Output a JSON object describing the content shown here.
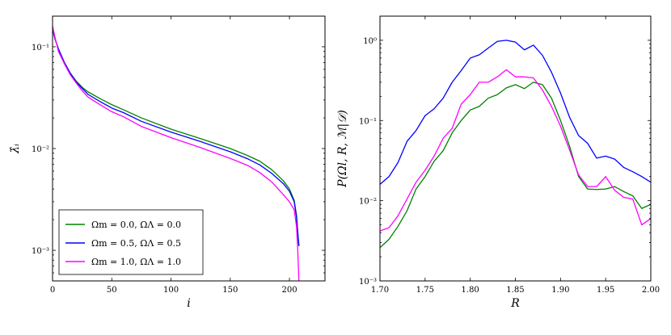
{
  "chart_data": [
    {
      "type": "line",
      "yscale": "log",
      "xlabel": "i",
      "ylabel": "λ̂ᵢ",
      "xlim": [
        0,
        230
      ],
      "ylim": [
        0.0005,
        0.2
      ],
      "xticks": [
        0,
        50,
        100,
        150,
        200
      ],
      "xtick_labels": [
        "0",
        "50",
        "100",
        "150",
        "200"
      ],
      "yticks": [
        0.001,
        0.01,
        0.1
      ],
      "ytick_labels": [
        "10⁻³",
        "10⁻²",
        "10⁻¹"
      ],
      "legend_position": "lower-left",
      "series": [
        {
          "name": "Ωm = 0.0,  ΩΛ = 0.0",
          "color": "#008000",
          "x": [
            0,
            2,
            5,
            10,
            15,
            20,
            25,
            30,
            40,
            50,
            60,
            75,
            100,
            125,
            150,
            165,
            175,
            185,
            195,
            200,
            204,
            206,
            207,
            208
          ],
          "y": [
            0.15,
            0.12,
            0.095,
            0.07,
            0.055,
            0.046,
            0.04,
            0.036,
            0.031,
            0.027,
            0.024,
            0.02,
            0.0155,
            0.0125,
            0.01,
            0.0085,
            0.0075,
            0.0062,
            0.0048,
            0.004,
            0.0031,
            0.0022,
            0.0015,
            0.0011
          ]
        },
        {
          "name": "Ωm = 0.5,  ΩΛ = 0.5",
          "color": "#0000ff",
          "x": [
            0,
            2,
            5,
            10,
            15,
            20,
            25,
            30,
            40,
            50,
            60,
            75,
            100,
            125,
            150,
            165,
            175,
            185,
            195,
            200,
            204,
            206,
            207,
            208
          ],
          "y": [
            0.15,
            0.12,
            0.095,
            0.07,
            0.055,
            0.045,
            0.039,
            0.034,
            0.029,
            0.025,
            0.0225,
            0.0185,
            0.0145,
            0.0117,
            0.0093,
            0.0079,
            0.0069,
            0.0057,
            0.0045,
            0.0038,
            0.003,
            0.0021,
            0.0015,
            0.0011
          ]
        },
        {
          "name": "Ωm = 1.0,  ΩΛ = 1.0",
          "color": "#ff00ff",
          "x": [
            0,
            2,
            5,
            10,
            15,
            20,
            25,
            30,
            40,
            50,
            60,
            75,
            100,
            125,
            150,
            165,
            175,
            185,
            195,
            200,
            204,
            206,
            207,
            208
          ],
          "y": [
            0.16,
            0.125,
            0.09,
            0.068,
            0.053,
            0.044,
            0.037,
            0.032,
            0.027,
            0.023,
            0.0205,
            0.0165,
            0.0128,
            0.0102,
            0.008,
            0.0068,
            0.0058,
            0.0047,
            0.0035,
            0.003,
            0.0025,
            0.0017,
            0.001,
            0.0005
          ]
        }
      ]
    },
    {
      "type": "line",
      "yscale": "log",
      "xlabel": "R",
      "ylabel": "P(Ωl, R, ℳ|𝒟)",
      "xlim": [
        1.7,
        2.0
      ],
      "ylim": [
        0.001,
        2
      ],
      "xticks": [
        1.7,
        1.75,
        1.8,
        1.85,
        1.9,
        1.95,
        2.0
      ],
      "xtick_labels": [
        "1.70",
        "1.75",
        "1.80",
        "1.85",
        "1.90",
        "1.95",
        "2.00"
      ],
      "yticks": [
        0.001,
        0.01,
        0.1,
        1
      ],
      "ytick_labels": [
        "10⁻³",
        "10⁻²",
        "10⁻¹",
        "10⁰"
      ],
      "series": [
        {
          "name": "Ωm = 0.0,  ΩΛ = 0.0",
          "color": "#008000",
          "x": [
            1.7,
            1.71,
            1.72,
            1.73,
            1.74,
            1.75,
            1.76,
            1.77,
            1.78,
            1.79,
            1.8,
            1.81,
            1.82,
            1.83,
            1.84,
            1.85,
            1.86,
            1.87,
            1.88,
            1.89,
            1.9,
            1.91,
            1.92,
            1.93,
            1.94,
            1.95,
            1.96,
            1.97,
            1.98,
            1.99,
            2.0
          ],
          "y": [
            0.0026,
            0.0033,
            0.0048,
            0.0075,
            0.014,
            0.02,
            0.031,
            0.042,
            0.07,
            0.1,
            0.135,
            0.15,
            0.19,
            0.21,
            0.255,
            0.28,
            0.25,
            0.3,
            0.28,
            0.19,
            0.1,
            0.048,
            0.02,
            0.014,
            0.0138,
            0.014,
            0.015,
            0.013,
            0.0115,
            0.008,
            0.009
          ]
        },
        {
          "name": "Ωm = 0.5,  ΩΛ = 0.5",
          "color": "#0000ff",
          "x": [
            1.7,
            1.71,
            1.72,
            1.73,
            1.74,
            1.75,
            1.76,
            1.77,
            1.78,
            1.79,
            1.8,
            1.81,
            1.82,
            1.83,
            1.84,
            1.85,
            1.86,
            1.87,
            1.88,
            1.89,
            1.9,
            1.91,
            1.92,
            1.93,
            1.94,
            1.95,
            1.96,
            1.97,
            1.98,
            1.99,
            2.0
          ],
          "y": [
            0.016,
            0.02,
            0.03,
            0.055,
            0.075,
            0.115,
            0.14,
            0.19,
            0.3,
            0.42,
            0.6,
            0.66,
            0.8,
            0.97,
            1.0,
            0.95,
            0.76,
            0.87,
            0.65,
            0.4,
            0.22,
            0.11,
            0.065,
            0.052,
            0.034,
            0.036,
            0.033,
            0.026,
            0.023,
            0.02,
            0.017
          ]
        },
        {
          "name": "Ωm = 1.0,  ΩΛ = 1.0",
          "color": "#ff00ff",
          "x": [
            1.7,
            1.71,
            1.72,
            1.73,
            1.74,
            1.75,
            1.76,
            1.77,
            1.78,
            1.79,
            1.8,
            1.81,
            1.82,
            1.83,
            1.84,
            1.85,
            1.86,
            1.87,
            1.88,
            1.89,
            1.9,
            1.91,
            1.92,
            1.93,
            1.94,
            1.95,
            1.96,
            1.97,
            1.98,
            1.99,
            2.0
          ],
          "y": [
            0.0042,
            0.0046,
            0.0065,
            0.0105,
            0.017,
            0.024,
            0.036,
            0.06,
            0.08,
            0.16,
            0.21,
            0.3,
            0.3,
            0.35,
            0.43,
            0.35,
            0.35,
            0.34,
            0.24,
            0.15,
            0.085,
            0.043,
            0.021,
            0.015,
            0.015,
            0.02,
            0.0135,
            0.011,
            0.0105,
            0.005,
            0.006
          ]
        }
      ]
    }
  ]
}
